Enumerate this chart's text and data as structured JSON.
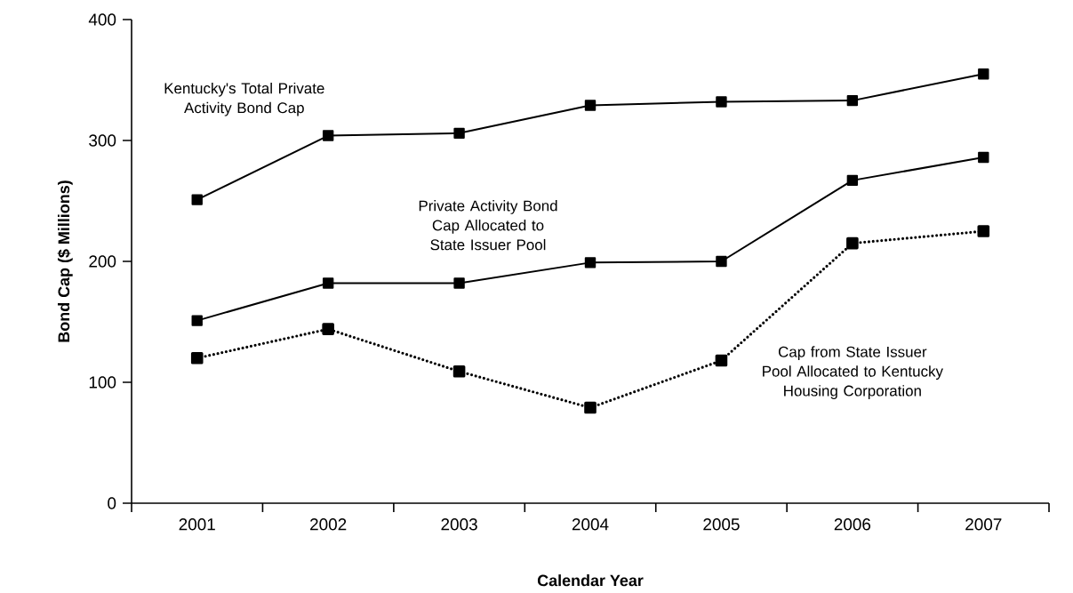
{
  "chart_data": {
    "type": "line",
    "xlabel": "Calendar Year",
    "ylabel": "Bond Cap ($ Millions)",
    "categories": [
      "2001",
      "2002",
      "2003",
      "2004",
      "2005",
      "2006",
      "2007"
    ],
    "ylim": [
      0,
      400
    ],
    "yticks": [
      0,
      100,
      200,
      300,
      400
    ],
    "grid": false,
    "legend": false,
    "marker": "square",
    "series": [
      {
        "name": "Kentucky's Total Private Activity Bond Cap",
        "color": "#000000",
        "line_style": "solid",
        "values": [
          251,
          304,
          306,
          329,
          332,
          333,
          355
        ]
      },
      {
        "name": "Private Activity Bond Cap Allocated to State Issuer Pool",
        "color": "#000000",
        "line_style": "solid",
        "values": [
          151,
          182,
          182,
          199,
          200,
          267,
          286
        ]
      },
      {
        "name": "Cap from State Issuer Pool Allocated to Kentucky Housing Corporation",
        "color": "#000000",
        "line_style": "dotted",
        "values": [
          120,
          144,
          109,
          79,
          118,
          215,
          225
        ]
      }
    ]
  }
}
